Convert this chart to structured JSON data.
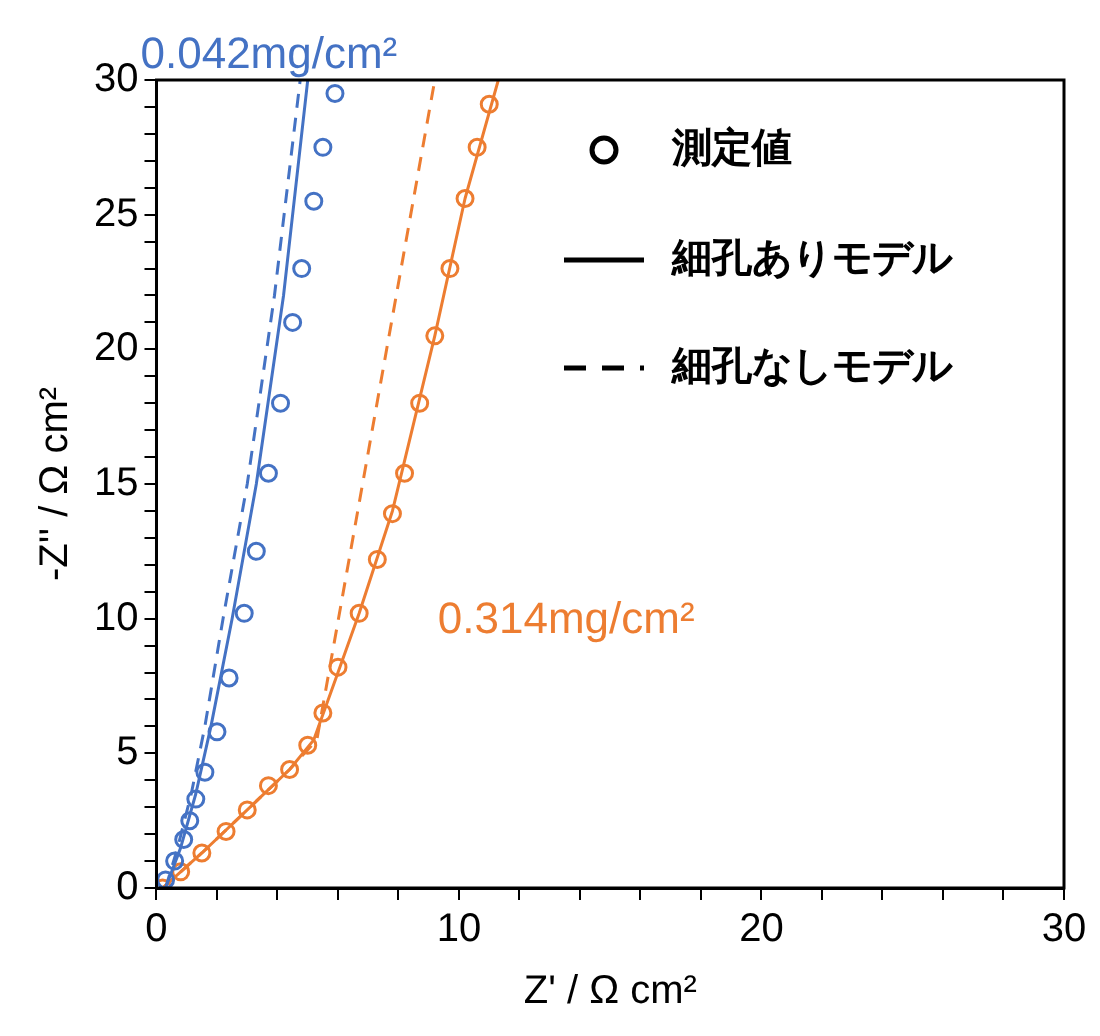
{
  "chart_data": {
    "type": "scatter",
    "xlabel": "Z' / Ω cm²",
    "ylabel": "-Z'' / Ω cm²",
    "annotations": [
      "0.042mg/cm²",
      "0.314mg/cm²",
      "測定値",
      "細孔ありモデル",
      "細孔なしモデル"
    ],
    "xlim": [
      0,
      30
    ],
    "ylim": [
      0,
      30
    ],
    "xticks": [
      0,
      {
        "value": 2,
        "label": null
      },
      {
        "value": 4,
        "label": null
      },
      {
        "value": 6,
        "label": null
      },
      {
        "value": 8,
        "label": null
      },
      10,
      {
        "value": 12,
        "label": null
      },
      {
        "value": 14,
        "label": null
      },
      {
        "value": 16,
        "label": null
      },
      {
        "value": 18,
        "label": null
      },
      20,
      {
        "value": 22,
        "label": null
      },
      {
        "value": 24,
        "label": null
      },
      {
        "value": 26,
        "label": null
      },
      {
        "value": 28,
        "label": null
      },
      30
    ],
    "yticks": [
      0,
      {
        "value": 1,
        "label": null
      },
      {
        "value": 2,
        "label": null
      },
      {
        "value": 3,
        "label": null
      },
      {
        "value": 4,
        "label": null
      },
      5,
      {
        "value": 6,
        "label": null
      },
      {
        "value": 7,
        "label": null
      },
      {
        "value": 8,
        "label": null
      },
      {
        "value": 9,
        "label": null
      },
      10,
      {
        "value": 11,
        "label": null
      },
      {
        "value": 12,
        "label": null
      },
      {
        "value": 13,
        "label": null
      },
      {
        "value": 14,
        "label": null
      },
      15,
      {
        "value": 16,
        "label": null
      },
      {
        "value": 17,
        "label": null
      },
      {
        "value": 18,
        "label": null
      },
      {
        "value": 19,
        "label": null
      },
      20,
      {
        "value": 21,
        "label": null
      },
      {
        "value": 22,
        "label": null
      },
      {
        "value": 23,
        "label": null
      },
      {
        "value": 24,
        "label": null
      },
      25,
      {
        "value": 26,
        "label": null
      },
      {
        "value": 27,
        "label": null
      },
      {
        "value": 28,
        "label": null
      },
      {
        "value": 29,
        "label": null
      },
      30
    ],
    "grid": false,
    "series": [
      {
        "marker": "circle",
        "color": "#4472c4",
        "x": [
          0.3,
          0.6,
          0.9,
          1.1,
          1.3,
          1.6,
          2.0,
          2.4,
          2.9,
          3.3,
          3.7,
          4.1,
          4.5,
          4.8,
          5.2,
          5.5,
          5.9
        ],
        "values": [
          0.3,
          1.0,
          1.8,
          2.5,
          3.3,
          4.3,
          5.8,
          7.8,
          10.2,
          12.5,
          15.4,
          18,
          21,
          23,
          25.5,
          27.5,
          29.5
        ]
      },
      {
        "type": "line",
        "marker": "none",
        "line_style": "solid",
        "color": "#4472c4",
        "x": [
          0.3,
          0.8,
          1.3,
          1.8,
          2.5,
          3.3,
          4.2,
          5.0
        ],
        "values": [
          0,
          1.5,
          3.5,
          6,
          10,
          15,
          22,
          30
        ]
      },
      {
        "type": "line",
        "marker": "none",
        "line_style": "dashed",
        "color": "#4472c4",
        "x": [
          0.3,
          0.7,
          1.15,
          1.6,
          2.2,
          3.0,
          3.9,
          4.75
        ],
        "values": [
          0,
          1.5,
          3.5,
          6,
          10,
          15,
          22,
          30
        ]
      },
      {
        "marker": "circle",
        "color": "#ed7d31",
        "x": [
          0.2,
          0.8,
          1.5,
          2.3,
          3.0,
          3.7,
          4.4,
          5.0,
          5.5,
          6.0,
          6.7,
          7.3,
          7.8,
          8.2,
          8.7,
          9.2,
          9.7,
          10.2,
          10.6,
          11.0
        ],
        "values": [
          0,
          0.6,
          1.3,
          2.1,
          2.9,
          3.8,
          4.4,
          5.3,
          6.5,
          8.2,
          10.2,
          12.2,
          13.9,
          15.4,
          18,
          20.5,
          23,
          25.6,
          27.5,
          29.1
        ]
      },
      {
        "type": "line",
        "marker": "none",
        "line_style": "solid",
        "color": "#ed7d31",
        "x": [
          0.2,
          1.5,
          3.0,
          4.4,
          5.2,
          6.0,
          6.7,
          7.8,
          9.2,
          10.2,
          11.3
        ],
        "values": [
          0,
          1.3,
          2.9,
          4.4,
          5.5,
          8,
          10.2,
          14,
          20.5,
          25.6,
          30
        ]
      },
      {
        "type": "line",
        "marker": "none",
        "line_style": "dashed",
        "color": "#ed7d31",
        "x": [
          0.2,
          1.5,
          3.0,
          4.4,
          5.3,
          9.2
        ],
        "values": [
          0,
          1.3,
          2.9,
          4.4,
          5.5,
          30
        ]
      }
    ]
  }
}
